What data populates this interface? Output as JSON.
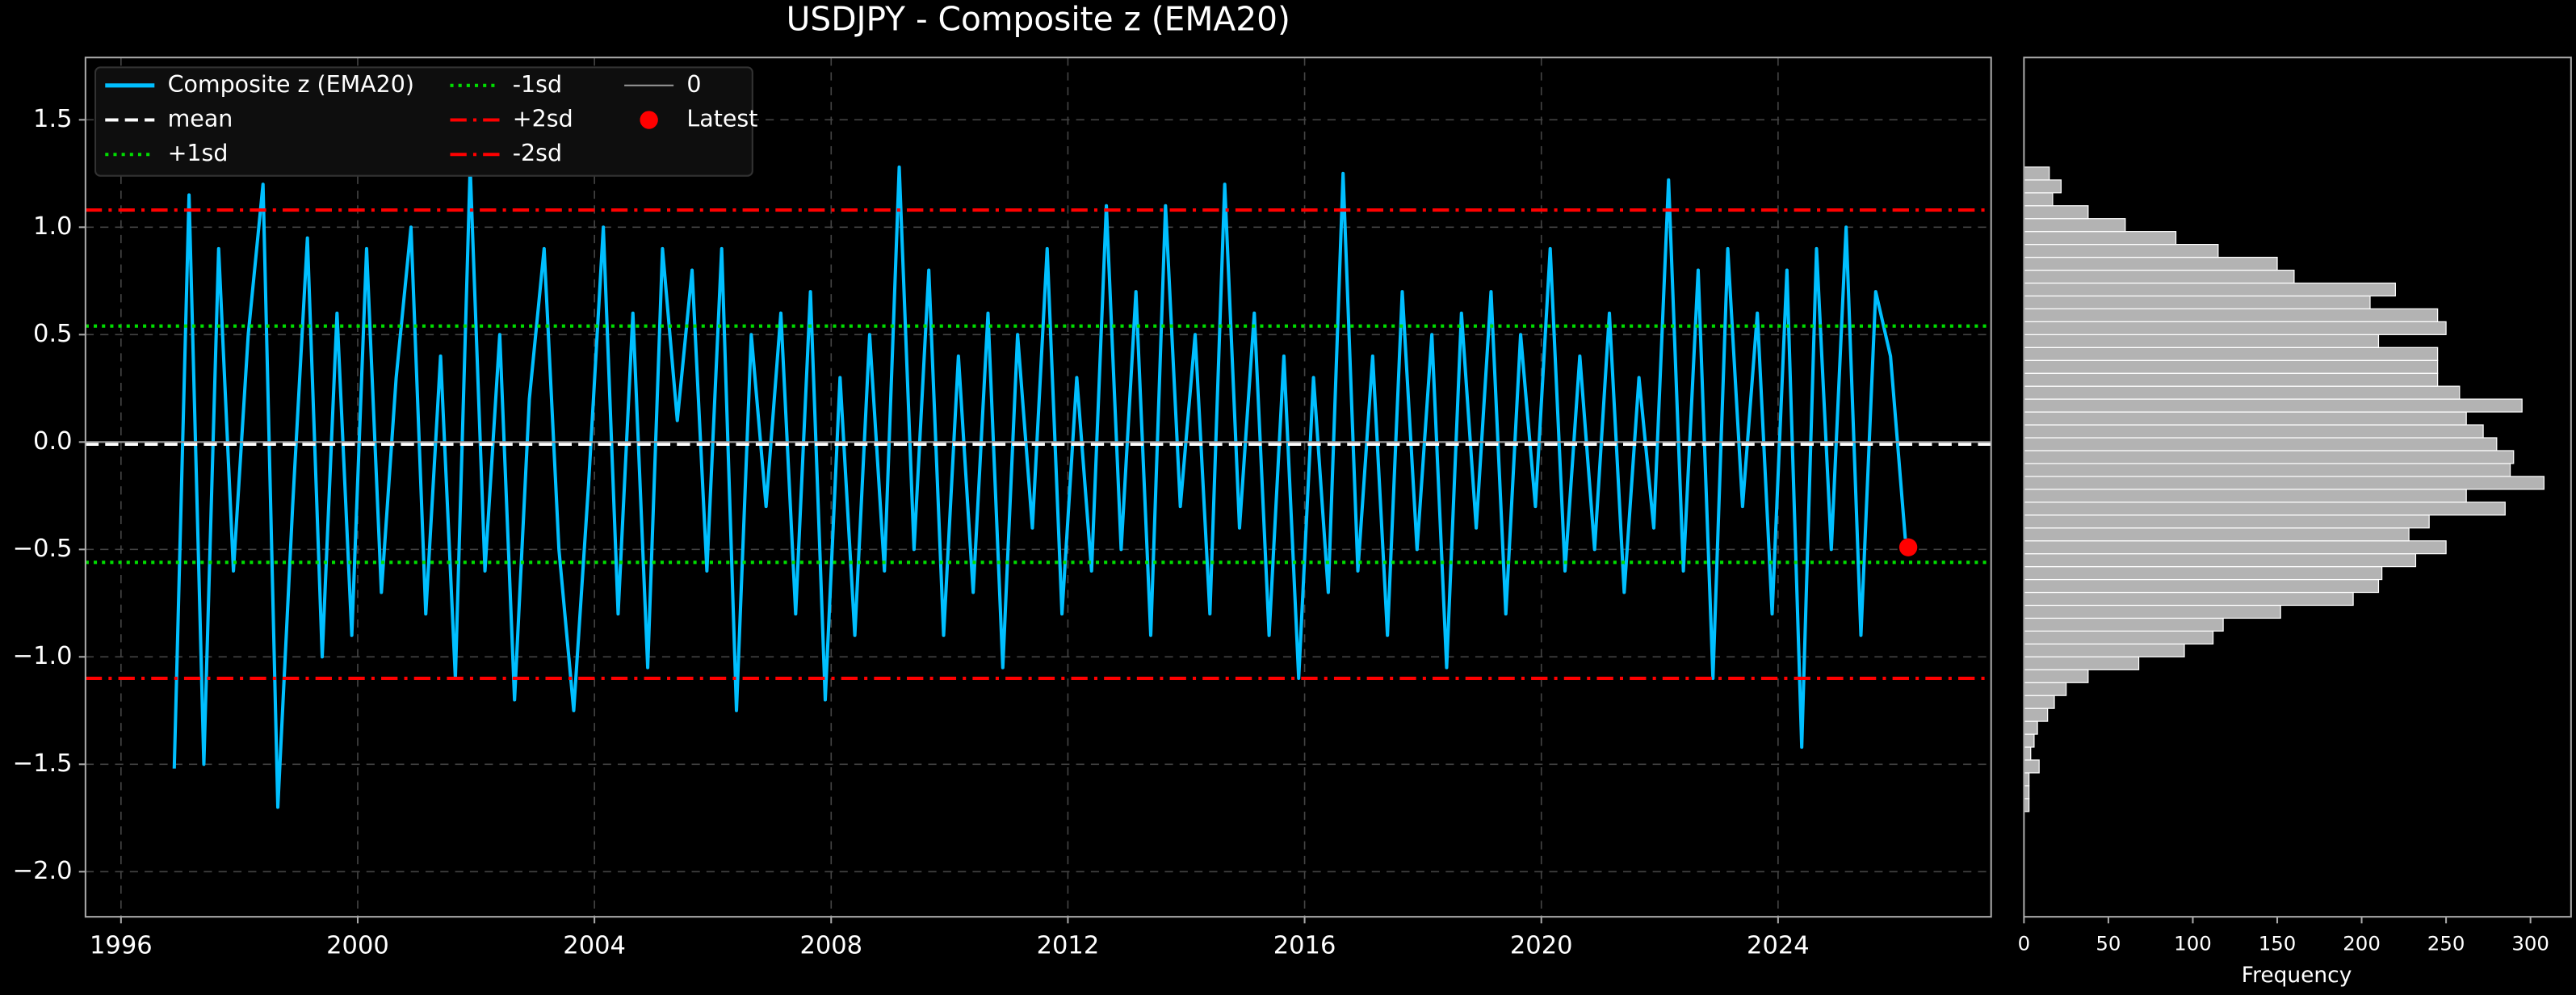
{
  "chart_data": [
    {
      "type": "line",
      "title": "USDJPY - Composite z (EMA20)",
      "x": [
        1996.9,
        1997.15,
        1997.4,
        1997.65,
        1997.9,
        1998.15,
        1998.4,
        1998.65,
        1998.9,
        1999.15,
        1999.4,
        1999.65,
        1999.9,
        2000.15,
        2000.4,
        2000.65,
        2000.9,
        2001.15,
        2001.4,
        2001.65,
        2001.9,
        2002.15,
        2002.4,
        2002.65,
        2002.9,
        2003.15,
        2003.4,
        2003.65,
        2003.9,
        2004.15,
        2004.4,
        2004.65,
        2004.9,
        2005.15,
        2005.4,
        2005.65,
        2005.9,
        2006.15,
        2006.4,
        2006.65,
        2006.9,
        2007.15,
        2007.4,
        2007.65,
        2007.9,
        2008.15,
        2008.4,
        2008.65,
        2008.9,
        2009.15,
        2009.4,
        2009.65,
        2009.9,
        2010.15,
        2010.4,
        2010.65,
        2010.9,
        2011.15,
        2011.4,
        2011.65,
        2011.9,
        2012.15,
        2012.4,
        2012.65,
        2012.9,
        2013.15,
        2013.4,
        2013.65,
        2013.9,
        2014.15,
        2014.4,
        2014.65,
        2014.9,
        2015.15,
        2015.4,
        2015.65,
        2015.9,
        2016.15,
        2016.4,
        2016.65,
        2016.9,
        2017.15,
        2017.4,
        2017.65,
        2017.9,
        2018.15,
        2018.4,
        2018.65,
        2018.9,
        2019.15,
        2019.4,
        2019.65,
        2019.9,
        2020.15,
        2020.4,
        2020.65,
        2020.9,
        2021.15,
        2021.4,
        2021.65,
        2021.9,
        2022.15,
        2022.4,
        2022.65,
        2022.9,
        2023.15,
        2023.4,
        2023.65,
        2023.9,
        2024.15,
        2024.4,
        2024.65,
        2024.9,
        2025.15,
        2025.4,
        2025.65,
        2025.9,
        2026.15
      ],
      "series": [
        {
          "name": "Composite z (EMA20)",
          "color": "#00bfff",
          "values": [
            -1.52,
            1.15,
            -1.5,
            0.9,
            -0.6,
            0.5,
            1.2,
            -1.7,
            -0.3,
            0.95,
            -1.0,
            0.6,
            -0.9,
            0.9,
            -0.7,
            0.3,
            1.0,
            -0.8,
            0.4,
            -1.1,
            1.28,
            -0.6,
            0.5,
            -1.2,
            0.2,
            0.9,
            -0.5,
            -1.25,
            -0.2,
            1.0,
            -0.8,
            0.6,
            -1.05,
            0.9,
            0.1,
            0.8,
            -0.6,
            0.9,
            -1.25,
            0.5,
            -0.3,
            0.6,
            -0.8,
            0.7,
            -1.2,
            0.3,
            -0.9,
            0.5,
            -0.6,
            1.28,
            -0.5,
            0.8,
            -0.9,
            0.4,
            -0.7,
            0.6,
            -1.05,
            0.5,
            -0.4,
            0.9,
            -0.8,
            0.3,
            -0.6,
            1.1,
            -0.5,
            0.7,
            -0.9,
            1.1,
            -0.3,
            0.5,
            -0.8,
            1.2,
            -0.4,
            0.6,
            -0.9,
            0.4,
            -1.1,
            0.3,
            -0.7,
            1.25,
            -0.6,
            0.4,
            -0.9,
            0.7,
            -0.5,
            0.5,
            -1.05,
            0.6,
            -0.4,
            0.7,
            -0.8,
            0.5,
            -0.3,
            0.9,
            -0.6,
            0.4,
            -0.5,
            0.6,
            -0.7,
            0.3,
            -0.4,
            1.22,
            -0.6,
            0.8,
            -1.1,
            0.9,
            -0.3,
            0.6,
            -0.8,
            0.8,
            -1.42,
            0.9,
            -0.5,
            1.0,
            -0.9,
            0.7,
            0.4,
            -0.45
          ]
        }
      ],
      "hlines": [
        {
          "name": "mean",
          "value": -0.01,
          "color": "#ffffff",
          "dash": "dashed"
        },
        {
          "name": "+1sd",
          "value": 0.54,
          "color": "#00dd00",
          "dash": "dotted"
        },
        {
          "name": "-1sd",
          "value": -0.56,
          "color": "#00dd00",
          "dash": "dotted"
        },
        {
          "name": "+2sd",
          "value": 1.08,
          "color": "#ff0000",
          "dash": "dashdot"
        },
        {
          "name": "-2sd",
          "value": -1.1,
          "color": "#ff0000",
          "dash": "dashdot"
        },
        {
          "name": "0",
          "value": 0,
          "color": "#999999",
          "dash": "solid"
        }
      ],
      "points": [
        {
          "name": "Latest",
          "color": "#ff0000",
          "x": 2026.2,
          "value": -0.49
        }
      ],
      "xlim": [
        1995.4,
        2027.6
      ],
      "xticks": [
        1996,
        2000,
        2004,
        2008,
        2012,
        2016,
        2020,
        2024
      ],
      "ylim": [
        -2.21,
        1.79
      ],
      "yticks": [
        {
          "value": -2.0,
          "label": "−2.0"
        },
        {
          "value": -1.5,
          "label": "−1.5"
        },
        {
          "value": -1.0,
          "label": "−1.0"
        },
        {
          "value": -0.5,
          "label": "−0.5"
        },
        {
          "value": 0.0,
          "label": "0.0"
        },
        0.5,
        {
          "value": 1.0,
          "label": "1.0"
        },
        1.5
      ],
      "grid": true,
      "legend": "upper left"
    },
    {
      "type": "histogram",
      "orientation": "horizontal",
      "xlabel": "Frequency",
      "color": "#b3b3b3",
      "bins": [
        -1.72,
        -1.66,
        -1.6,
        -1.54,
        -1.48,
        -1.42,
        -1.36,
        -1.3,
        -1.24,
        -1.18,
        -1.12,
        -1.06,
        -1.0,
        -0.94,
        -0.88,
        -0.82,
        -0.76,
        -0.7,
        -0.64,
        -0.58,
        -0.52,
        -0.46,
        -0.4,
        -0.34,
        -0.28,
        -0.22,
        -0.16,
        -0.1,
        -0.04,
        0.02,
        0.08,
        0.14,
        0.2,
        0.26,
        0.32,
        0.38,
        0.44,
        0.5,
        0.56,
        0.62,
        0.68,
        0.74,
        0.8,
        0.86,
        0.92,
        0.98,
        1.04,
        1.1,
        1.16,
        1.22,
        1.28
      ],
      "values": [
        3,
        3,
        3,
        9,
        4,
        6,
        8,
        14,
        18,
        25,
        38,
        68,
        95,
        112,
        118,
        152,
        195,
        210,
        212,
        232,
        250,
        228,
        240,
        285,
        262,
        308,
        288,
        290,
        280,
        272,
        262,
        295,
        258,
        245,
        245,
        245,
        210,
        250,
        245,
        205,
        220,
        160,
        150,
        115,
        90,
        60,
        38,
        17,
        22,
        15
      ],
      "xlim": [
        0,
        324
      ],
      "xticks": [
        0,
        50,
        100,
        150,
        200,
        250,
        300
      ],
      "ylim": [
        -2.21,
        1.79
      ]
    }
  ]
}
